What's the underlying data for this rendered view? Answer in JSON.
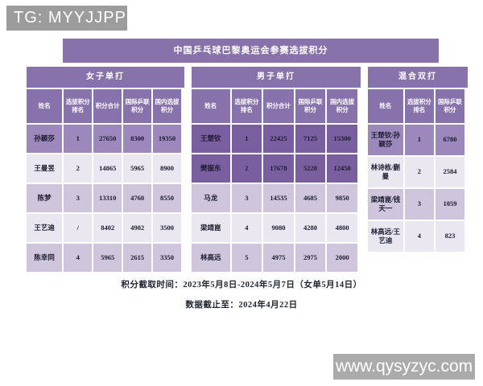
{
  "badge": {
    "text": "TG: MYYJJPP"
  },
  "title": "中国乒乓球巴黎奥运会参赛选拔积分",
  "tables": [
    {
      "id": "women-singles",
      "title": "女子单打",
      "headers": [
        "姓名",
        "选拔积分排名",
        "积分合计",
        "国际乒联积分",
        "国内选拔积分"
      ],
      "rows": [
        {
          "cells": [
            "孙颖莎",
            "1",
            "27650",
            "8300",
            "19350"
          ],
          "highlight": "mid"
        },
        {
          "cells": [
            "王曼昱",
            "2",
            "14865",
            "5965",
            "8900"
          ],
          "highlight": null
        },
        {
          "cells": [
            "陈梦",
            "3",
            "13310",
            "4760",
            "8550"
          ],
          "highlight": null
        },
        {
          "cells": [
            "王艺迪",
            "/",
            "8402",
            "4902",
            "3500"
          ],
          "highlight": null
        },
        {
          "cells": [
            "陈幸同",
            "4",
            "5965",
            "2615",
            "3350"
          ],
          "highlight": null
        }
      ]
    },
    {
      "id": "men-singles",
      "title": "男子单打",
      "headers": [
        "姓名",
        "选拔积分排名",
        "积分合计",
        "国际乒联积分",
        "国内选拔积分"
      ],
      "rows": [
        {
          "cells": [
            "王楚钦",
            "1",
            "22425",
            "7125",
            "15300"
          ],
          "highlight": "dark"
        },
        {
          "cells": [
            "樊振东",
            "2",
            "17678",
            "5228",
            "12450"
          ],
          "highlight": "dark"
        },
        {
          "cells": [
            "马龙",
            "3",
            "14535",
            "4685",
            "9850"
          ],
          "highlight": null
        },
        {
          "cells": [
            "梁靖崑",
            "4",
            "9080",
            "4280",
            "4800"
          ],
          "highlight": null
        },
        {
          "cells": [
            "林高远",
            "5",
            "4975",
            "2975",
            "2000"
          ],
          "highlight": null
        }
      ]
    },
    {
      "id": "mixed-doubles",
      "title": "混合双打",
      "headers": [
        "姓名",
        "选拔积分排名",
        "国际乒联积分"
      ],
      "rows": [
        {
          "cells": [
            "王楚钦/孙颖莎",
            "1",
            "6780"
          ],
          "highlight": "mid"
        },
        {
          "cells": [
            "林诗栋/蒯曼",
            "2",
            "2584"
          ],
          "highlight": null
        },
        {
          "cells": [
            "梁靖崑/钱天一",
            "3",
            "1059"
          ],
          "highlight": null
        },
        {
          "cells": [
            "林高远/王艺迪",
            "4",
            "823"
          ],
          "highlight": null
        }
      ]
    }
  ],
  "footer": {
    "line1": "积分截取时间：2023年5月8日-2024年5月7日（女单5月14日）",
    "line2": "数据截止至：2024年4月22日"
  },
  "watermark": {
    "text": "www.qysyzyc.com"
  },
  "colors": {
    "header_purple": "#8872ab",
    "highlight_mid": "#9d88bc",
    "highlight_dark": "#7a5fa0",
    "row_light": "#eae7f1",
    "row_lavender": "#cfc6de",
    "badge_gray": "#9c9c9c",
    "watermark_gray": "#ababab"
  }
}
